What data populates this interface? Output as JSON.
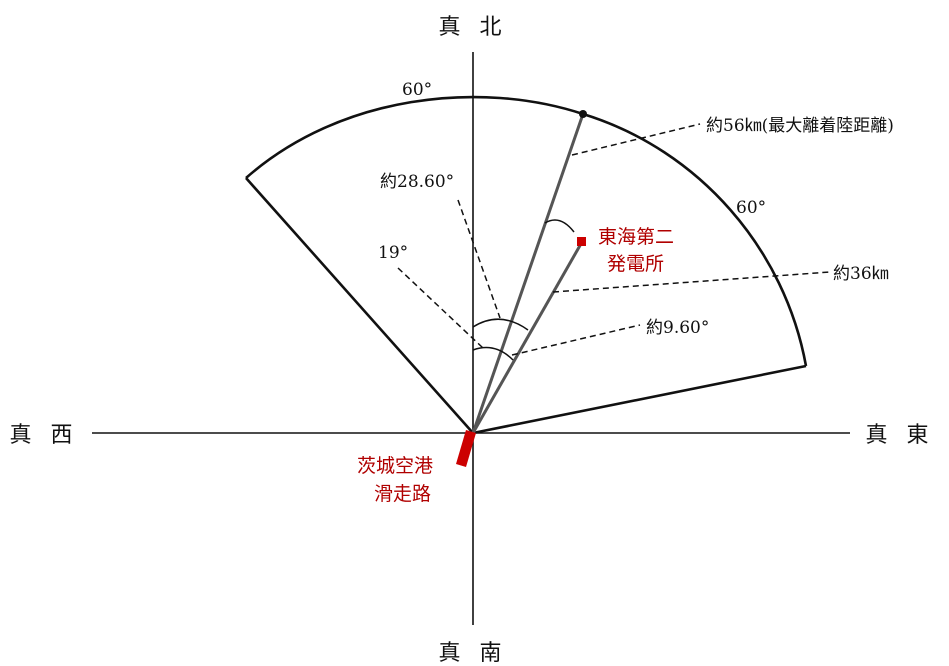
{
  "compass": {
    "north": "真 北",
    "south": "真 南",
    "east": "真 東",
    "west": "真 西"
  },
  "labels": {
    "max_range": "約56㎞(最大離着陸距離)",
    "plant_range": "約36㎞",
    "angle_60_top": "60°",
    "angle_60_right": "60°",
    "angle_28_6": "約28.60°",
    "angle_19": "19°",
    "angle_9_6": "約9.60°"
  },
  "places": {
    "power_plant": [
      "東海第二",
      "発電所"
    ],
    "airport_runway": [
      "茨城空港",
      "滑走路"
    ]
  },
  "colors": {
    "accent_red": "#cc0000",
    "label_red": "#b00000",
    "line": "#111111"
  }
}
